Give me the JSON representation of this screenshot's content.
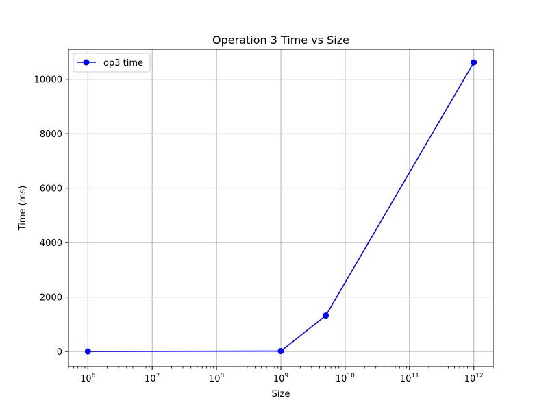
{
  "chart_data": {
    "type": "line",
    "title": "Operation 3 Time vs Size",
    "xlabel": "Size",
    "ylabel": "Time (ms)",
    "x_scale": "log",
    "xlim": [
      500000,
      2000000000000
    ],
    "ylim": [
      -550,
      11100
    ],
    "grid": true,
    "legend_position": "top-left",
    "x_ticks": [
      {
        "value": 1000000,
        "base": "10",
        "exp": "6"
      },
      {
        "value": 10000000,
        "base": "10",
        "exp": "7"
      },
      {
        "value": 100000000,
        "base": "10",
        "exp": "8"
      },
      {
        "value": 1000000000,
        "base": "10",
        "exp": "9"
      },
      {
        "value": 10000000000,
        "base": "10",
        "exp": "10"
      },
      {
        "value": 100000000000,
        "base": "10",
        "exp": "11"
      },
      {
        "value": 1000000000000,
        "base": "10",
        "exp": "12"
      }
    ],
    "y_ticks": [
      {
        "value": 0,
        "label": "0"
      },
      {
        "value": 2000,
        "label": "2000"
      },
      {
        "value": 4000,
        "label": "4000"
      },
      {
        "value": 6000,
        "label": "6000"
      },
      {
        "value": 8000,
        "label": "8000"
      },
      {
        "value": 10000,
        "label": "10000"
      }
    ],
    "series": [
      {
        "name": "op3 time",
        "color": "#0000ff",
        "marker": "circle",
        "x": [
          1000000,
          1000000000,
          5000000000,
          1000000000000
        ],
        "y": [
          3,
          15,
          1320,
          10620
        ]
      }
    ]
  }
}
